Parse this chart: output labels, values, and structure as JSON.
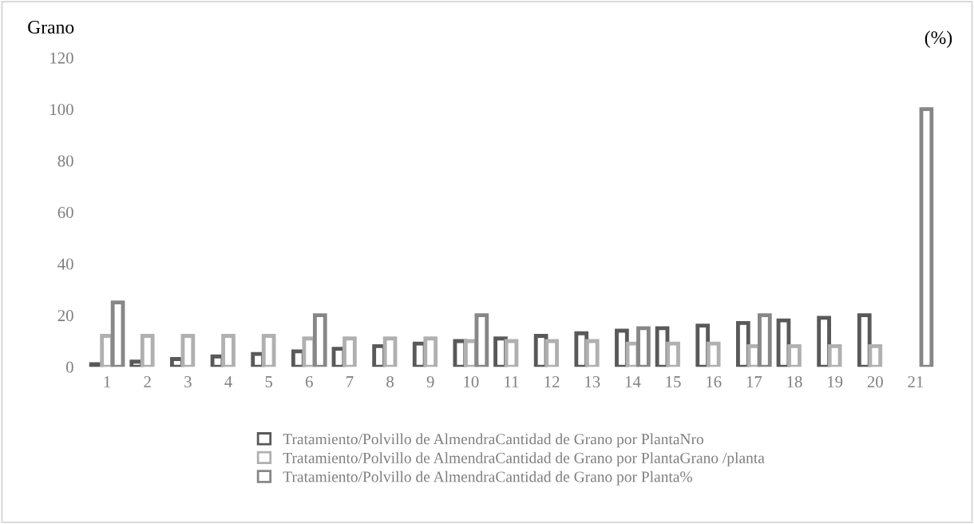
{
  "chart_data": {
    "type": "bar",
    "ylabel": "Grano",
    "annotations": [
      "(%)"
    ],
    "categories": [
      "1",
      "2",
      "3",
      "4",
      "5",
      "6",
      "7",
      "8",
      "9",
      "10",
      "11",
      "12",
      "13",
      "14",
      "15",
      "16",
      "17",
      "18",
      "19",
      "20",
      "21"
    ],
    "series": [
      {
        "name": "Tratamiento/Polvillo de AlmendraCantidad de Grano por PlantaNro",
        "color": "#595959",
        "values": [
          1,
          2,
          3,
          4,
          5,
          6,
          7,
          8,
          9,
          10,
          11,
          12,
          13,
          14,
          15,
          16,
          17,
          18,
          19,
          20,
          null
        ]
      },
      {
        "name": "Tratamiento/Polvillo de AlmendraCantidad de Grano por PlantaGrano /planta",
        "color": "#b0b0b0",
        "values": [
          12,
          12,
          12,
          12,
          12,
          11,
          11,
          11,
          11,
          10,
          10,
          10,
          10,
          9,
          9,
          9,
          8,
          8,
          8,
          8,
          null
        ]
      },
      {
        "name": "Tratamiento/Polvillo de AlmendraCantidad de Grano por Planta%",
        "color": "#878787",
        "values": [
          25,
          null,
          null,
          null,
          null,
          20,
          null,
          null,
          null,
          20,
          null,
          null,
          null,
          15,
          null,
          null,
          20,
          null,
          null,
          null,
          100
        ]
      }
    ],
    "ylim": [
      0,
      120
    ],
    "yticks": [
      0,
      20,
      40,
      60,
      80,
      100,
      120
    ],
    "grid": false,
    "legend": "bottom"
  }
}
